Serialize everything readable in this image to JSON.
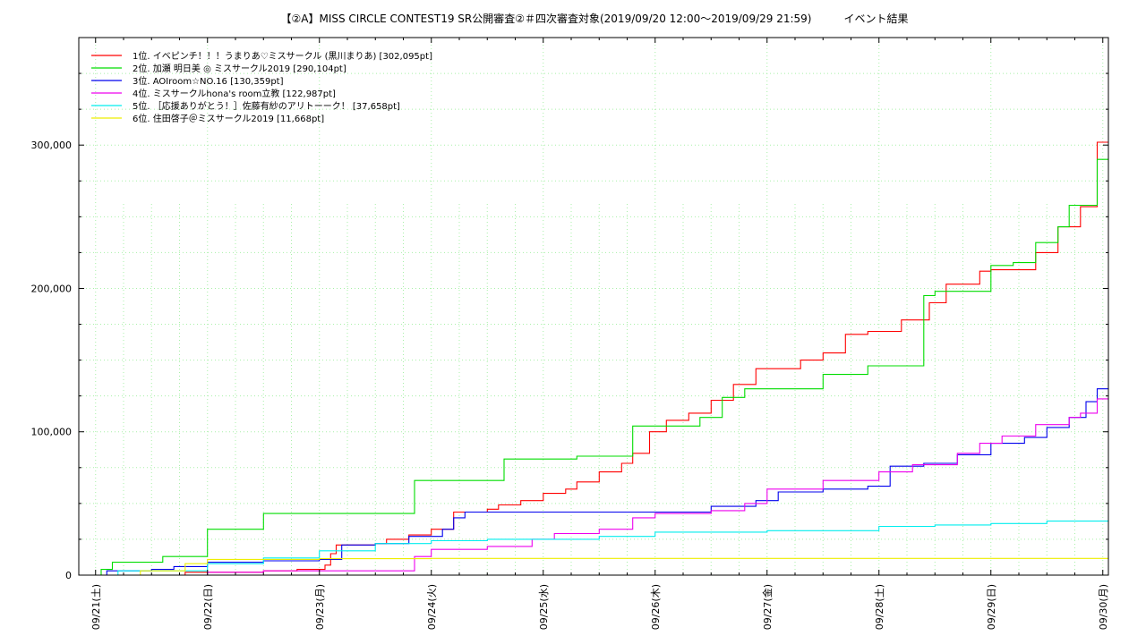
{
  "chart_data": {
    "type": "line",
    "title": "【②A】MISS CIRCLE CONTEST19 SR公開審査②＃四次審査対象(2019/09/20 12:00〜2019/09/29 21:59)　　　イベント結果",
    "xlabel": "",
    "ylabel": "",
    "ylim": [
      0,
      375000
    ],
    "xlim": [
      -0.15,
      9.05
    ],
    "grid": true,
    "legend_position": "top-left",
    "y_ticks": [
      0,
      100000,
      200000,
      300000
    ],
    "y_tick_labels": [
      "0",
      "100,000",
      "200,000",
      "300,000"
    ],
    "x_ticks": [
      0,
      1,
      2,
      3,
      4,
      5,
      6,
      7,
      8,
      9
    ],
    "x_tick_labels": [
      "09/21(土)",
      "09/22(日)",
      "09/23(月)",
      "09/24(火)",
      "09/25(水)",
      "09/26(木)",
      "09/27(金)",
      "09/28(土)",
      "09/29(日)",
      "09/30(月)"
    ],
    "series": [
      {
        "name": "1位. イベピンチ！！！うまりあ♡ミスサークル (黒川まりあ) [302,095pt]",
        "color": "#ff0000",
        "points": [
          [
            -0.12,
            0
          ],
          [
            0.5,
            0
          ],
          [
            0.8,
            2000
          ],
          [
            1.5,
            3000
          ],
          [
            1.8,
            4000
          ],
          [
            2.05,
            7000
          ],
          [
            2.1,
            15000
          ],
          [
            2.15,
            21000
          ],
          [
            2.5,
            22000
          ],
          [
            2.6,
            25000
          ],
          [
            2.8,
            28000
          ],
          [
            3.0,
            32000
          ],
          [
            3.2,
            44000
          ],
          [
            3.5,
            46000
          ],
          [
            3.6,
            49000
          ],
          [
            3.8,
            52000
          ],
          [
            4.0,
            57000
          ],
          [
            4.2,
            60000
          ],
          [
            4.3,
            65000
          ],
          [
            4.5,
            72000
          ],
          [
            4.7,
            78000
          ],
          [
            4.8,
            85000
          ],
          [
            4.95,
            100000
          ],
          [
            5.1,
            108000
          ],
          [
            5.3,
            113000
          ],
          [
            5.5,
            122000
          ],
          [
            5.7,
            133000
          ],
          [
            5.9,
            144000
          ],
          [
            6.3,
            150000
          ],
          [
            6.5,
            155000
          ],
          [
            6.7,
            168000
          ],
          [
            6.9,
            170000
          ],
          [
            7.2,
            178000
          ],
          [
            7.45,
            190000
          ],
          [
            7.6,
            203000
          ],
          [
            7.9,
            212000
          ],
          [
            8.0,
            213000
          ],
          [
            8.4,
            225000
          ],
          [
            8.6,
            243000
          ],
          [
            8.8,
            257000
          ],
          [
            8.95,
            302000
          ],
          [
            9.05,
            302000
          ]
        ]
      },
      {
        "name": "2位. 加瀬 明日美 ◎ ミスサークル2019 [290,104pt]",
        "color": "#00dd00",
        "points": [
          [
            -0.12,
            0
          ],
          [
            0.05,
            4000
          ],
          [
            0.15,
            9000
          ],
          [
            0.6,
            13000
          ],
          [
            1.0,
            32000
          ],
          [
            1.5,
            43000
          ],
          [
            2.5,
            43000
          ],
          [
            2.7,
            43000
          ],
          [
            2.85,
            66000
          ],
          [
            3.3,
            66000
          ],
          [
            3.65,
            81000
          ],
          [
            4.3,
            83000
          ],
          [
            4.65,
            83000
          ],
          [
            4.8,
            104000
          ],
          [
            5.4,
            110000
          ],
          [
            5.6,
            124000
          ],
          [
            5.8,
            130000
          ],
          [
            6.2,
            130000
          ],
          [
            6.5,
            140000
          ],
          [
            6.9,
            146000
          ],
          [
            7.3,
            146000
          ],
          [
            7.4,
            195000
          ],
          [
            7.5,
            198000
          ],
          [
            7.8,
            198000
          ],
          [
            8.0,
            216000
          ],
          [
            8.2,
            218000
          ],
          [
            8.4,
            232000
          ],
          [
            8.6,
            243000
          ],
          [
            8.7,
            258000
          ],
          [
            8.9,
            258000
          ],
          [
            8.95,
            290000
          ],
          [
            9.05,
            290000
          ]
        ]
      },
      {
        "name": "3位. AOIroom☆NO.16 [130,359pt]",
        "color": "#0000ee",
        "points": [
          [
            -0.12,
            0
          ],
          [
            0.1,
            3000
          ],
          [
            0.5,
            4000
          ],
          [
            0.7,
            6000
          ],
          [
            1.0,
            9000
          ],
          [
            1.5,
            10000
          ],
          [
            1.8,
            10000
          ],
          [
            2.0,
            11000
          ],
          [
            2.2,
            21000
          ],
          [
            2.5,
            22000
          ],
          [
            2.8,
            27000
          ],
          [
            3.1,
            32000
          ],
          [
            3.2,
            40000
          ],
          [
            3.3,
            44000
          ],
          [
            3.5,
            44000
          ],
          [
            4.0,
            44000
          ],
          [
            4.5,
            44000
          ],
          [
            5.0,
            44000
          ],
          [
            5.5,
            48000
          ],
          [
            5.9,
            52000
          ],
          [
            6.1,
            58000
          ],
          [
            6.5,
            60000
          ],
          [
            6.9,
            62000
          ],
          [
            7.1,
            76000
          ],
          [
            7.4,
            78000
          ],
          [
            7.7,
            84000
          ],
          [
            8.0,
            92000
          ],
          [
            8.3,
            96000
          ],
          [
            8.5,
            103000
          ],
          [
            8.7,
            110000
          ],
          [
            8.85,
            121000
          ],
          [
            8.95,
            130000
          ],
          [
            9.05,
            130000
          ]
        ]
      },
      {
        "name": "4位. ミスサークルhona's room立教 [122,987pt]",
        "color": "#ee00ee",
        "points": [
          [
            -0.12,
            0
          ],
          [
            1.0,
            2000
          ],
          [
            1.5,
            3000
          ],
          [
            2.0,
            3000
          ],
          [
            2.5,
            3000
          ],
          [
            2.8,
            3000
          ],
          [
            2.85,
            13000
          ],
          [
            3.0,
            18000
          ],
          [
            3.5,
            20000
          ],
          [
            3.9,
            25000
          ],
          [
            4.1,
            29000
          ],
          [
            4.5,
            32000
          ],
          [
            4.8,
            40000
          ],
          [
            5.0,
            43000
          ],
          [
            5.5,
            45000
          ],
          [
            5.8,
            50000
          ],
          [
            6.0,
            60000
          ],
          [
            6.5,
            66000
          ],
          [
            7.0,
            72000
          ],
          [
            7.3,
            77000
          ],
          [
            7.7,
            85000
          ],
          [
            7.9,
            92000
          ],
          [
            8.1,
            97000
          ],
          [
            8.4,
            105000
          ],
          [
            8.7,
            110000
          ],
          [
            8.8,
            113000
          ],
          [
            8.95,
            123000
          ],
          [
            9.05,
            123000
          ]
        ]
      },
      {
        "name": "5位. ［応援ありがとう！］佐藤有紗のアリトーーク！ [37,658pt]",
        "color": "#00eeee",
        "points": [
          [
            -0.12,
            0
          ],
          [
            0.2,
            3000
          ],
          [
            1.0,
            8000
          ],
          [
            1.5,
            12000
          ],
          [
            2.0,
            17000
          ],
          [
            2.5,
            22000
          ],
          [
            3.0,
            24000
          ],
          [
            3.5,
            25000
          ],
          [
            4.0,
            25000
          ],
          [
            4.5,
            27000
          ],
          [
            5.0,
            30000
          ],
          [
            5.5,
            30000
          ],
          [
            6.0,
            31000
          ],
          [
            6.5,
            31000
          ],
          [
            7.0,
            34000
          ],
          [
            7.5,
            35000
          ],
          [
            8.0,
            36000
          ],
          [
            8.5,
            37658
          ],
          [
            9.05,
            37658
          ]
        ]
      },
      {
        "name": "6位. 住田啓子＠ミスサークル2019 [11,668pt]",
        "color": "#eeee00",
        "points": [
          [
            -0.12,
            0
          ],
          [
            0.4,
            3000
          ],
          [
            0.8,
            8000
          ],
          [
            1.0,
            11000
          ],
          [
            2.0,
            11500
          ],
          [
            3.0,
            11668
          ],
          [
            9.05,
            11668
          ]
        ]
      }
    ]
  }
}
